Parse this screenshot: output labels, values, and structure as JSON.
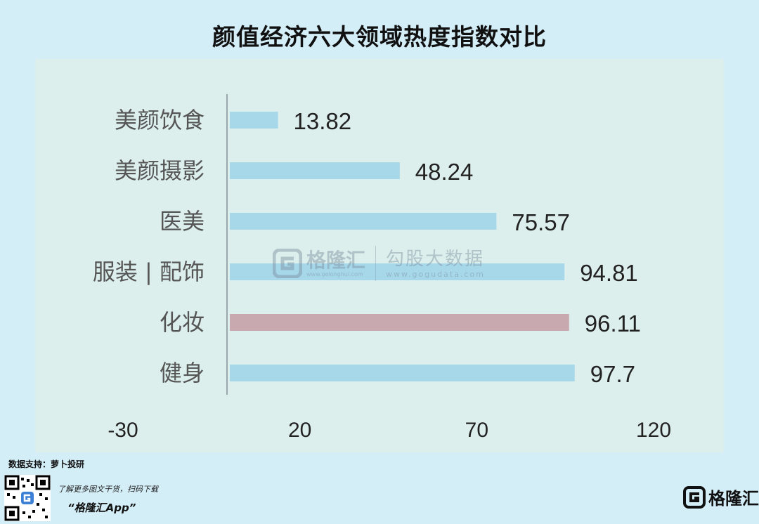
{
  "title": "颜值经济六大领域热度指数对比",
  "chart_data": {
    "type": "bar",
    "orientation": "horizontal",
    "title": "颜值经济六大领域热度指数对比",
    "categories": [
      "美颜饮食",
      "美颜摄影",
      "医美",
      "服装 | 配饰",
      "化妆",
      "健身"
    ],
    "values": [
      13.82,
      48.24,
      75.57,
      94.81,
      96.11,
      97.7
    ],
    "value_labels": [
      "13.82",
      "48.24",
      "75.57",
      "94.81",
      "96.11",
      "97.7"
    ],
    "xlim": [
      -30,
      120
    ],
    "xticks": [
      -30,
      20,
      70,
      120
    ],
    "xtick_labels": [
      "-30",
      "20",
      "70",
      "120"
    ],
    "bar_colors": [
      "#a6d8ea",
      "#a6d8ea",
      "#a6d8ea",
      "#a6d8ea",
      "#c8a9b0",
      "#a6d8ea"
    ],
    "grid": false
  },
  "source": "数据支持：萝卜投研",
  "promo": {
    "line1": "了解更多图文干货，扫码下载",
    "line2": "“格隆汇App”"
  },
  "brand": {
    "name": "格隆汇",
    "logo_icon": "g-logo-icon"
  },
  "watermark": {
    "name": "格隆汇",
    "url": "www.gelonghui.com",
    "name2": "勾股大数据",
    "url2": "www.gogudata.com"
  },
  "colors": {
    "background": "#d4eef8",
    "panel": "#dcefec",
    "bar": "#a6d8ea",
    "highlight_bar": "#c8a9b0"
  }
}
